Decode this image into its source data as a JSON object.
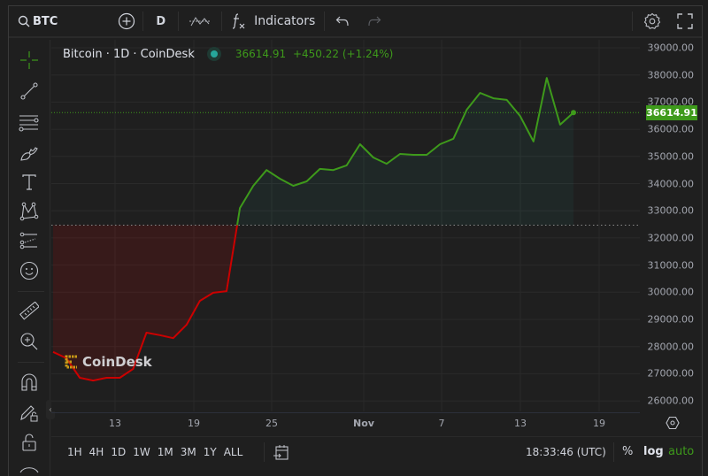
{
  "toolbar": {
    "symbol": "BTC",
    "interval": "D",
    "indicators_label": "Indicators",
    "icons": [
      "search-icon",
      "add-symbol-icon",
      "chart-type-icon",
      "function-icon",
      "undo-icon",
      "redo-icon",
      "settings-icon",
      "fullscreen-icon"
    ]
  },
  "sidebar": {
    "tools": [
      "crosshair",
      "trend-line",
      "fib-retracement",
      "brush",
      "text",
      "pattern",
      "prediction",
      "emoji",
      "ruler",
      "zoom-in",
      "magnet",
      "lock-drawings",
      "lock-all",
      "eye"
    ]
  },
  "legend": {
    "title": "Bitcoin · 1D · CoinDesk",
    "last": "36614.91",
    "change": "+450.22",
    "change_pct": "(+1.24%)"
  },
  "watermark": "CoinDesk",
  "yaxis": {
    "labels": [
      "39000.00",
      "38000.00",
      "37000.00",
      "36000.00",
      "35000.00",
      "34000.00",
      "33000.00",
      "32000.00",
      "31000.00",
      "30000.00",
      "29000.00",
      "28000.00",
      "27000.00",
      "26000.00"
    ],
    "current_price": "36614.91"
  },
  "xaxis": {
    "labels": [
      "13",
      "19",
      "25",
      "Nov",
      "7",
      "13",
      "19"
    ]
  },
  "bottombar": {
    "ranges": [
      "1H",
      "4H",
      "1D",
      "1W",
      "1M",
      "3M",
      "1Y",
      "ALL"
    ],
    "time": "18:33:46 (UTC)",
    "percent": "%",
    "log": "log",
    "auto": "auto"
  },
  "colors": {
    "up": "#3e9a1b",
    "down": "#cc0000",
    "background": "#1f1f1f",
    "accent": "#26a69a"
  },
  "chart_data": {
    "type": "area",
    "title": "Bitcoin · 1D · CoinDesk",
    "xlabel": "",
    "ylabel": "",
    "x_ticks": [
      "13",
      "19",
      "25",
      "Nov",
      "7",
      "13",
      "19"
    ],
    "ylim": [
      26000,
      39000
    ],
    "baseline": 32470,
    "grid": true,
    "values": [
      27800,
      27570,
      26850,
      26750,
      26850,
      26850,
      27180,
      28510,
      28420,
      28310,
      28800,
      29680,
      29980,
      30040,
      33100,
      33920,
      34500,
      34180,
      33920,
      34080,
      34540,
      34500,
      34670,
      35450,
      34960,
      34730,
      35090,
      35060,
      35060,
      35450,
      35650,
      36720,
      37340,
      37140,
      37080,
      36490,
      35550,
      37890,
      36170,
      36614.91
    ]
  }
}
